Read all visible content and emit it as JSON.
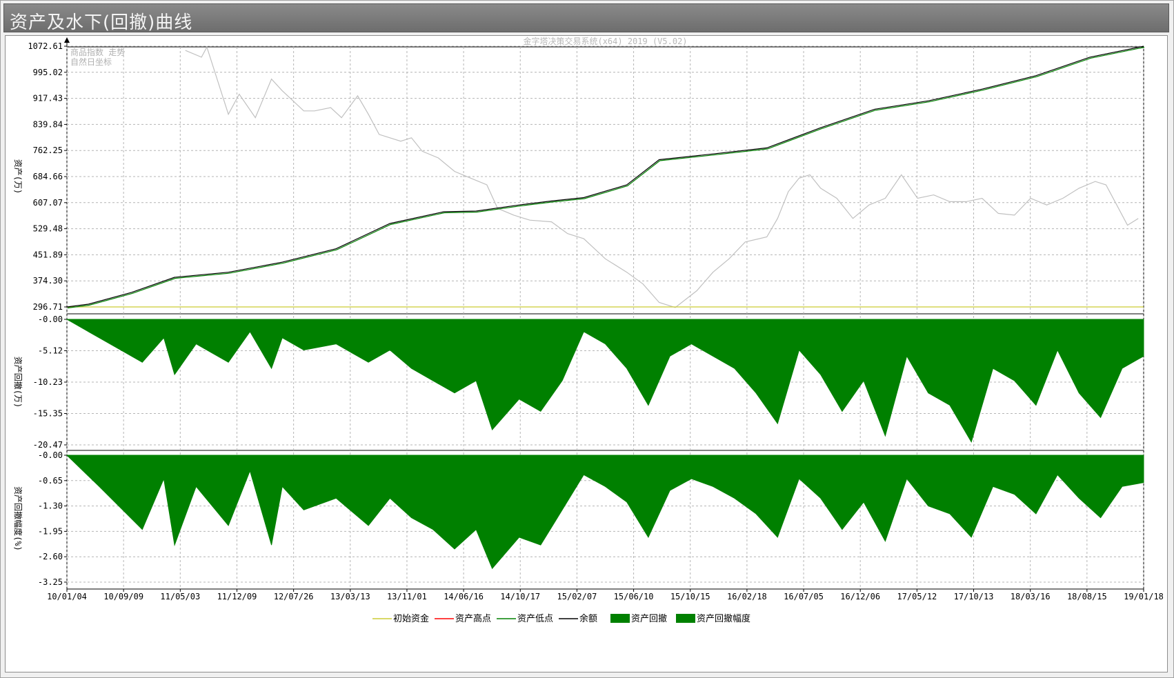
{
  "window": {
    "title": "资产及水下(回撤)曲线"
  },
  "chart_data": {
    "type": "line",
    "watermark": "金字塔决策交易系统(x64) 2019 (V5.02)",
    "colors": {
      "initial": "#cccc33",
      "high": "#ff0000",
      "low": "#008000",
      "balance": "#000000",
      "fill": "#008000",
      "index": "#c0c0c0",
      "grid": "#b4b4b4"
    },
    "x_tick_labels": [
      "10/01/04",
      "10/09/09",
      "11/05/03",
      "11/12/09",
      "12/07/26",
      "13/03/13",
      "13/11/01",
      "14/06/16",
      "14/10/17",
      "15/02/07",
      "15/06/10",
      "15/10/15",
      "16/02/18",
      "16/07/05",
      "16/12/06",
      "17/05/12",
      "17/10/13",
      "18/03/16",
      "18/08/15",
      "19/01/18"
    ],
    "panels": [
      {
        "id": "asset",
        "ylabel": "资产(万)",
        "y_ticks": [
          "1072.61",
          "995.02",
          "917.43",
          "839.84",
          "762.25",
          "684.66",
          "607.07",
          "529.48",
          "451.89",
          "374.30",
          "296.71"
        ],
        "ylim": [
          296.71,
          1072.61
        ],
        "notes": [
          "商品指数 走势",
          "自然日坐标"
        ],
        "series": [
          {
            "name": "初始资金",
            "values": [
              296.71,
              296.71
            ]
          },
          {
            "name": "余额",
            "x_frac": [
              0,
              0.02,
              0.06,
              0.1,
              0.15,
              0.2,
              0.25,
              0.3,
              0.35,
              0.38,
              0.42,
              0.45,
              0.48,
              0.52,
              0.55,
              0.6,
              0.65,
              0.7,
              0.75,
              0.8,
              0.85,
              0.9,
              0.95,
              1.0
            ],
            "values": [
              296.71,
              305,
              340,
              385,
              400,
              430,
              470,
              545,
              580,
              582,
              600,
              612,
              622,
              660,
              735,
              752,
              770,
              830,
              885,
              910,
              945,
              985,
              1040,
              1072.61
            ]
          }
        ],
        "index_trace": {
          "x_frac": [
            0.11,
            0.125,
            0.13,
            0.14,
            0.15,
            0.16,
            0.175,
            0.19,
            0.2,
            0.22,
            0.23,
            0.245,
            0.255,
            0.27,
            0.28,
            0.29,
            0.31,
            0.32,
            0.33,
            0.345,
            0.36,
            0.375,
            0.39,
            0.4,
            0.415,
            0.43,
            0.45,
            0.465,
            0.48,
            0.5,
            0.52,
            0.535,
            0.55,
            0.565,
            0.585,
            0.6,
            0.615,
            0.63,
            0.65,
            0.66,
            0.67,
            0.68,
            0.69,
            0.7,
            0.715,
            0.73,
            0.745,
            0.76,
            0.775,
            0.79,
            0.805,
            0.82,
            0.835,
            0.85,
            0.865,
            0.88,
            0.895,
            0.91,
            0.925,
            0.94,
            0.955,
            0.965,
            0.975,
            0.985,
            0.995
          ],
          "values": [
            1060,
            1040,
            1070,
            970,
            870,
            930,
            860,
            975,
            940,
            880,
            880,
            890,
            860,
            925,
            870,
            810,
            790,
            800,
            760,
            740,
            700,
            680,
            660,
            590,
            570,
            555,
            550,
            515,
            500,
            440,
            400,
            365,
            310,
            295,
            345,
            400,
            440,
            490,
            505,
            560,
            640,
            680,
            690,
            650,
            620,
            560,
            600,
            620,
            690,
            620,
            630,
            610,
            610,
            620,
            575,
            570,
            620,
            600,
            620,
            650,
            670,
            660,
            600,
            540,
            560
          ]
        }
      },
      {
        "id": "drawdown",
        "ylabel": "资产回撤(万)",
        "y_ticks": [
          "-0.00",
          "-5.12",
          "-10.23",
          "-15.35",
          "-20.47"
        ],
        "ylim": [
          -20.47,
          0
        ],
        "series": [
          {
            "name": "资产回撤",
            "x_frac": [
              0,
              0.03,
              0.07,
              0.09,
              0.1,
              0.12,
              0.15,
              0.17,
              0.19,
              0.2,
              0.22,
              0.25,
              0.28,
              0.3,
              0.32,
              0.34,
              0.36,
              0.38,
              0.395,
              0.42,
              0.44,
              0.46,
              0.48,
              0.5,
              0.52,
              0.54,
              0.56,
              0.58,
              0.6,
              0.62,
              0.64,
              0.66,
              0.68,
              0.7,
              0.72,
              0.74,
              0.76,
              0.78,
              0.8,
              0.82,
              0.84,
              0.86,
              0.88,
              0.9,
              0.92,
              0.94,
              0.96,
              0.98,
              1.0
            ],
            "values": [
              0,
              -3,
              -7,
              -3,
              -9,
              -4,
              -7,
              -2,
              -8,
              -3,
              -5,
              -4,
              -7,
              -5,
              -8,
              -10,
              -12,
              -10,
              -18,
              -13,
              -15,
              -10,
              -2,
              -4,
              -8,
              -14,
              -6,
              -4,
              -6,
              -8,
              -12,
              -17,
              -5,
              -9,
              -15,
              -10,
              -19,
              -6,
              -12,
              -14,
              -20,
              -8,
              -10,
              -14,
              -5,
              -12,
              -16,
              -8,
              -6
            ]
          }
        ]
      },
      {
        "id": "drawdown_pct",
        "ylabel": "资产回撤幅度(%)",
        "y_ticks": [
          "-0.00",
          "-0.65",
          "-1.30",
          "-1.95",
          "-2.60",
          "-3.25"
        ],
        "ylim": [
          -3.25,
          0
        ],
        "series": [
          {
            "name": "资产回撤幅度",
            "x_frac": [
              0,
              0.03,
              0.07,
              0.09,
              0.1,
              0.12,
              0.15,
              0.17,
              0.19,
              0.2,
              0.22,
              0.25,
              0.28,
              0.3,
              0.32,
              0.34,
              0.36,
              0.38,
              0.395,
              0.42,
              0.44,
              0.46,
              0.48,
              0.5,
              0.52,
              0.54,
              0.56,
              0.58,
              0.6,
              0.62,
              0.64,
              0.66,
              0.68,
              0.7,
              0.72,
              0.74,
              0.76,
              0.78,
              0.8,
              0.82,
              0.84,
              0.86,
              0.88,
              0.9,
              0.92,
              0.94,
              0.96,
              0.98,
              1.0
            ],
            "values": [
              0,
              -0.8,
              -1.9,
              -0.6,
              -2.3,
              -0.8,
              -1.8,
              -0.4,
              -2.3,
              -0.8,
              -1.4,
              -1.1,
              -1.8,
              -1.1,
              -1.6,
              -1.9,
              -2.4,
              -1.9,
              -2.9,
              -2.1,
              -2.3,
              -1.4,
              -0.5,
              -0.8,
              -1.2,
              -2.1,
              -0.9,
              -0.6,
              -0.8,
              -1.1,
              -1.5,
              -2.1,
              -0.6,
              -1.1,
              -1.9,
              -1.2,
              -2.2,
              -0.6,
              -1.3,
              -1.5,
              -2.1,
              -0.8,
              -1.0,
              -1.5,
              -0.5,
              -1.1,
              -1.6,
              -0.8,
              -0.7
            ]
          }
        ]
      }
    ],
    "legend": {
      "placement": "bottom",
      "items": [
        {
          "label": "初始资金",
          "kind": "line",
          "color": "#cccc33"
        },
        {
          "label": "资产高点",
          "kind": "line",
          "color": "#ff0000"
        },
        {
          "label": "资产低点",
          "kind": "line",
          "color": "#008000"
        },
        {
          "label": "余额",
          "kind": "line",
          "color": "#000000"
        },
        {
          "label": "资产回撤",
          "kind": "box",
          "color": "#008000"
        },
        {
          "label": "资产回撤幅度",
          "kind": "box",
          "color": "#008000"
        }
      ]
    }
  }
}
